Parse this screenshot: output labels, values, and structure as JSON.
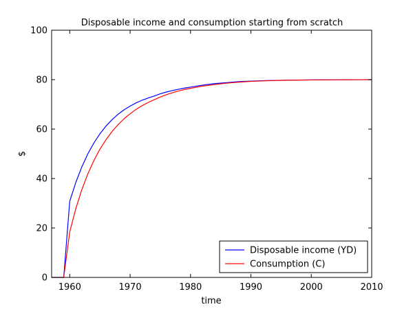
{
  "chart_data": {
    "type": "line",
    "title": "Disposable income and consumption starting from scratch",
    "xlabel": "time",
    "ylabel": "$",
    "xlim": [
      1957,
      2010
    ],
    "ylim": [
      0,
      100
    ],
    "xticks": [
      1960,
      1970,
      1980,
      1990,
      2000,
      2010
    ],
    "yticks": [
      0,
      20,
      40,
      60,
      80,
      100
    ],
    "grid": false,
    "legend_position": "bottom-right",
    "x": [
      1957,
      1958,
      1959,
      1960,
      1961,
      1962,
      1963,
      1964,
      1965,
      1966,
      1967,
      1968,
      1969,
      1970,
      1971,
      1972,
      1973,
      1974,
      1975,
      1976,
      1977,
      1978,
      1979,
      1980,
      1982,
      1984,
      1986,
      1988,
      1990,
      1992,
      1994,
      1996,
      1998,
      2000,
      2002,
      2004,
      2006,
      2008,
      2010
    ],
    "series": [
      {
        "name": "Disposable income (YD)",
        "color": "#0000ff",
        "values": [
          0,
          0,
          0,
          30.8,
          38.4,
          44.7,
          50.0,
          54.4,
          58.1,
          61.2,
          63.8,
          66.0,
          67.8,
          69.3,
          70.6,
          71.7,
          72.6,
          73.4,
          74.3,
          75.0,
          75.6,
          76.1,
          76.6,
          77.0,
          77.8,
          78.4,
          78.8,
          79.2,
          79.4,
          79.6,
          79.7,
          79.8,
          79.85,
          79.9,
          79.93,
          79.95,
          79.97,
          79.98,
          80.0
        ]
      },
      {
        "name": "Consumption (C)",
        "color": "#ff0000",
        "values": [
          0,
          0,
          0,
          18.4,
          27.8,
          35.5,
          41.9,
          47.3,
          51.9,
          55.7,
          59.0,
          61.8,
          64.2,
          66.2,
          68.0,
          69.5,
          70.8,
          71.9,
          73.0,
          73.9,
          74.7,
          75.4,
          76.0,
          76.5,
          77.4,
          78.0,
          78.6,
          79.0,
          79.3,
          79.5,
          79.65,
          79.75,
          79.83,
          79.88,
          79.92,
          79.95,
          79.97,
          79.98,
          80.0
        ]
      }
    ]
  }
}
